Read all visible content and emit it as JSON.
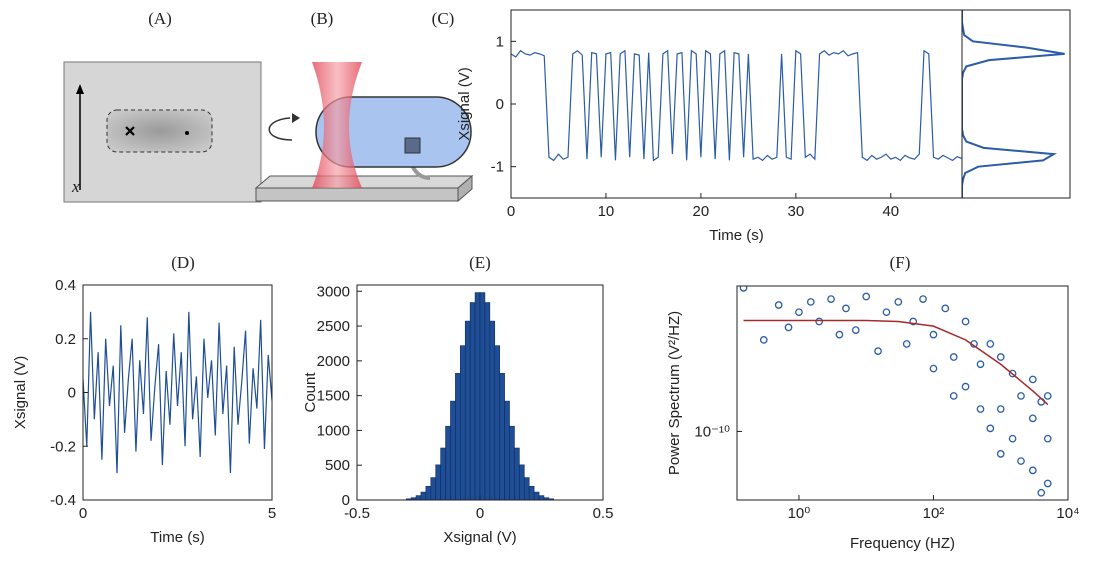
{
  "figure": {
    "panel_a": {
      "label": "(A)",
      "axis_label": "x"
    },
    "panel_b": {
      "label": "(B)"
    }
  },
  "chart_data": [
    {
      "type": "line",
      "title": "(C)",
      "xlabel": "Time (s)",
      "ylabel": "Xsignal (V)",
      "color": "#2a5ca8",
      "x": [
        0,
        0.5,
        1,
        1.5,
        2,
        2.5,
        3,
        3.5,
        4,
        4.5,
        5,
        5.5,
        6,
        6.5,
        7,
        7.5,
        8,
        8.5,
        9,
        9.5,
        10,
        10.5,
        11,
        11.5,
        12,
        12.5,
        13,
        13.5,
        14,
        14.5,
        15,
        15.5,
        16,
        16.5,
        17,
        17.5,
        18,
        18.5,
        19,
        19.5,
        20,
        20.5,
        21,
        21.5,
        22,
        22.5,
        23,
        23.5,
        24,
        24.5,
        25,
        25.5,
        26,
        26.5,
        27,
        27.5,
        28,
        28.5,
        29,
        29.5,
        30,
        30.5,
        31,
        31.5,
        32,
        32.5,
        33,
        33.5,
        34,
        34.5,
        35,
        35.5,
        36,
        36.5,
        37,
        37.5,
        38,
        38.5,
        39,
        39.5,
        40,
        40.5,
        41,
        41.5,
        42,
        42.5,
        43,
        43.5,
        44,
        44.5,
        45,
        45.5,
        46,
        46.5,
        47,
        47.5
      ],
      "values": [
        0.8,
        0.75,
        0.85,
        0.8,
        0.78,
        0.82,
        0.8,
        0.77,
        -0.85,
        -0.9,
        -0.8,
        -0.88,
        -0.85,
        0.8,
        0.85,
        0.78,
        -0.88,
        0.82,
        0.8,
        -0.85,
        0.8,
        0.82,
        -0.9,
        0.8,
        0.85,
        -0.85,
        0.8,
        0.78,
        -0.88,
        0.82,
        -0.9,
        -0.85,
        0.8,
        0.85,
        -0.8,
        0.8,
        0.82,
        -0.9,
        0.85,
        0.8,
        -0.85,
        0.85,
        0.8,
        -0.88,
        0.8,
        0.85,
        -0.9,
        0.82,
        0.8,
        -0.85,
        0.8,
        -0.88,
        -0.85,
        -0.9,
        -0.82,
        -0.88,
        -0.85,
        0.8,
        -0.85,
        -0.88,
        0.85,
        0.8,
        -0.85,
        -0.8,
        -0.88,
        0.8,
        0.85,
        0.78,
        0.82,
        0.8,
        0.85,
        0.77,
        0.8,
        0.82,
        -0.85,
        -0.9,
        -0.82,
        -0.88,
        -0.85,
        -0.8,
        -0.88,
        -0.85,
        -0.9,
        -0.82,
        -0.86,
        -0.88,
        -0.8,
        0.85,
        0.8,
        -0.85,
        -0.88,
        -0.82,
        -0.86,
        -0.9,
        -0.84,
        -0.87
      ],
      "xlim": [
        0,
        47.5
      ],
      "ylim": [
        -1.5,
        1.5
      ],
      "xticks": [
        0,
        10,
        20,
        30,
        40
      ],
      "yticks": [
        -1,
        0,
        1
      ]
    },
    {
      "type": "density",
      "orientation": "horizontal",
      "color": "#2a5ca8",
      "y": [
        -1.5,
        -1.4,
        -1.3,
        -1.2,
        -1.1,
        -1.0,
        -0.9,
        -0.8,
        -0.7,
        -0.6,
        -0.5,
        -0.4,
        -0.3,
        -0.2,
        -0.1,
        0,
        0.1,
        0.2,
        0.3,
        0.4,
        0.5,
        0.6,
        0.7,
        0.8,
        0.9,
        1.0,
        1.1,
        1.2,
        1.3,
        1.4,
        1.5
      ],
      "values": [
        0,
        0,
        0,
        0.01,
        0.03,
        0.15,
        0.75,
        0.85,
        0.2,
        0.04,
        0.01,
        0,
        0,
        0,
        0,
        0,
        0,
        0,
        0,
        0,
        0.01,
        0.04,
        0.25,
        0.95,
        0.6,
        0.1,
        0.02,
        0.01,
        0,
        0,
        0
      ],
      "xlim": [
        0,
        1
      ],
      "ylim": [
        -1.5,
        1.5
      ]
    },
    {
      "type": "line",
      "title": "(D)",
      "xlabel": "Time (s)",
      "ylabel": "Xsignal (V)",
      "color": "#1f4e96",
      "x": [
        0,
        0.1,
        0.2,
        0.3,
        0.4,
        0.5,
        0.6,
        0.7,
        0.8,
        0.9,
        1,
        1.1,
        1.2,
        1.3,
        1.4,
        1.5,
        1.6,
        1.7,
        1.8,
        1.9,
        2,
        2.1,
        2.2,
        2.3,
        2.4,
        2.5,
        2.6,
        2.7,
        2.8,
        2.9,
        3,
        3.1,
        3.2,
        3.3,
        3.4,
        3.5,
        3.6,
        3.7,
        3.8,
        3.9,
        4,
        4.1,
        4.2,
        4.3,
        4.4,
        4.5,
        4.6,
        4.7,
        4.8,
        4.9,
        5
      ],
      "values": [
        0.05,
        -0.2,
        0.3,
        -0.1,
        0.15,
        -0.25,
        0.2,
        -0.05,
        0.1,
        -0.3,
        0.25,
        -0.15,
        0.05,
        0.2,
        -0.22,
        0.12,
        -0.08,
        0.28,
        -0.18,
        0.02,
        0.18,
        -0.27,
        0.08,
        -0.12,
        0.22,
        -0.05,
        0.15,
        -0.2,
        0.3,
        -0.1,
        0.06,
        -0.24,
        0.2,
        -0.02,
        0.12,
        -0.16,
        0.26,
        -0.08,
        0.1,
        -0.3,
        0.17,
        -0.12,
        0.04,
        0.23,
        -0.19,
        0.09,
        -0.06,
        0.27,
        -0.21,
        0.14,
        -0.03
      ],
      "xlim": [
        0,
        5
      ],
      "ylim": [
        -0.4,
        0.4
      ],
      "xticks": [
        0,
        5
      ],
      "yticks": [
        -0.4,
        -0.2,
        0,
        0.2,
        0.4
      ]
    },
    {
      "type": "histogram",
      "title": "(E)",
      "xlabel": "Xsignal (V)",
      "ylabel": "Count",
      "color": "#1f4e96",
      "bins": [
        -0.3,
        -0.28,
        -0.26,
        -0.24,
        -0.22,
        -0.2,
        -0.18,
        -0.16,
        -0.14,
        -0.12,
        -0.1,
        -0.08,
        -0.06,
        -0.04,
        -0.02,
        0,
        0.02,
        0.04,
        0.06,
        0.08,
        0.1,
        0.12,
        0.14,
        0.16,
        0.18,
        0.2,
        0.22,
        0.24,
        0.26,
        0.28,
        0.3
      ],
      "values": [
        17,
        33,
        63,
        114,
        197,
        322,
        505,
        747,
        1060,
        1421,
        1820,
        2218,
        2571,
        2838,
        2981,
        2981,
        2838,
        2571,
        2218,
        1820,
        1421,
        1060,
        747,
        505,
        322,
        197,
        114,
        63,
        33,
        17
      ],
      "xlim": [
        -0.5,
        0.5
      ],
      "ylim": [
        0,
        3090
      ],
      "xticks": [
        -0.5,
        0,
        0.5
      ],
      "yticks": [
        0,
        500,
        1000,
        1500,
        2000,
        2500,
        3000
      ]
    },
    {
      "type": "scatter",
      "title": "(F)",
      "xlabel": "Frequency (HZ)",
      "ylabel": "Power Spectrum (V²/HZ)",
      "xlog": true,
      "ylog": true,
      "series": [
        {
          "mode": "markers",
          "color": "#2a5ca8",
          "x": [
            0.15,
            0.3,
            0.5,
            0.7,
            1,
            1.5,
            2,
            3,
            4,
            5,
            7,
            10,
            15,
            20,
            30,
            40,
            50,
            70,
            100,
            100,
            150,
            200,
            200,
            300,
            300,
            400,
            500,
            500,
            700,
            700,
            1000,
            1000,
            1000,
            1500,
            1500,
            2000,
            2000,
            3000,
            3000,
            3000,
            4000,
            4000,
            5000,
            5000,
            5000
          ],
          "values": [
            8.5e-09,
            1.7e-09,
            5e-09,
            2.5e-09,
            4e-09,
            5.5e-09,
            3e-09,
            6e-09,
            2e-09,
            4.5e-09,
            2.3e-09,
            6.5e-09,
            1.2e-09,
            4e-09,
            5.5e-09,
            1.5e-09,
            3e-09,
            6e-09,
            2e-09,
            7e-10,
            4.5e-09,
            1e-09,
            3e-10,
            3e-09,
            4e-10,
            1.5e-09,
            2e-10,
            8e-10,
            1.5e-09,
            1.1e-10,
            1e-09,
            2e-10,
            5e-11,
            6e-10,
            8e-11,
            3e-10,
            4e-11,
            5e-10,
            1.5e-10,
            3e-11,
            2.5e-10,
            1.5e-11,
            3e-10,
            8e-11,
            2e-11
          ]
        },
        {
          "mode": "line",
          "color": "#a52a2a",
          "x": [
            0.15,
            1,
            10,
            30,
            100,
            300,
            1000,
            3000,
            5000
          ],
          "values": [
            3.1e-09,
            3.1e-09,
            3.1e-09,
            3e-09,
            2.6e-09,
            1.7e-09,
            8e-10,
            3.5e-10,
            2.3e-10
          ]
        }
      ],
      "xlim": [
        0.12,
        10000
      ],
      "ylim": [
        1.2e-11,
        9e-09
      ],
      "xticks": [
        {
          "value": 1,
          "label": "10⁰"
        },
        {
          "value": 100,
          "label": "10²"
        },
        {
          "value": 10000,
          "label": "10⁴"
        }
      ],
      "yticks": [
        {
          "value": 1e-10,
          "label": "10⁻¹⁰"
        }
      ]
    }
  ]
}
